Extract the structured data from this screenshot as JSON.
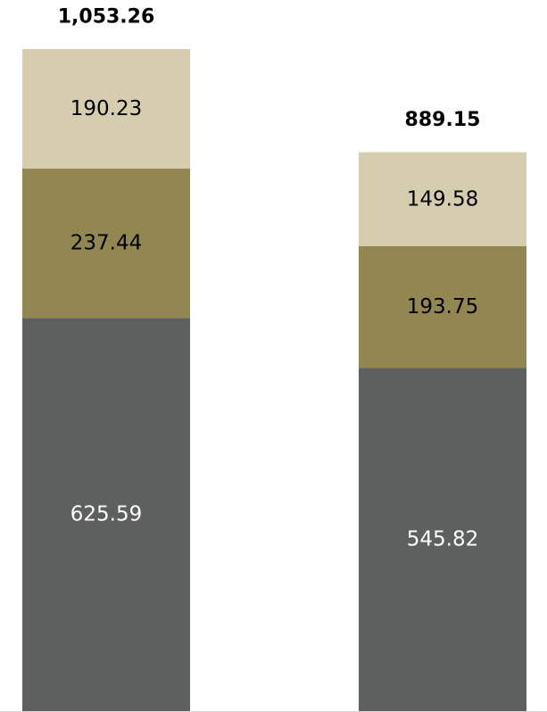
{
  "chart_data": {
    "type": "bar",
    "stacked": true,
    "categories": [
      "",
      ""
    ],
    "series": [
      {
        "values": [
          625.59,
          545.82
        ],
        "color": "#5e5f5f",
        "label_color": "#ffffff"
      },
      {
        "values": [
          237.44,
          193.75
        ],
        "color": "#928751",
        "label_color": "#000000"
      },
      {
        "values": [
          190.23,
          149.58
        ],
        "color": "#d6cdae",
        "label_color": "#000000"
      }
    ],
    "totals": [
      "1,053.26",
      "889.15"
    ],
    "segment_labels": [
      [
        "625.59",
        "545.82"
      ],
      [
        "237.44",
        "193.75"
      ],
      [
        "190.23",
        "149.58"
      ]
    ],
    "ylim": [
      0,
      1053.26
    ],
    "grid": false,
    "legend": "none",
    "baseline_color": "#d9d9d9"
  }
}
